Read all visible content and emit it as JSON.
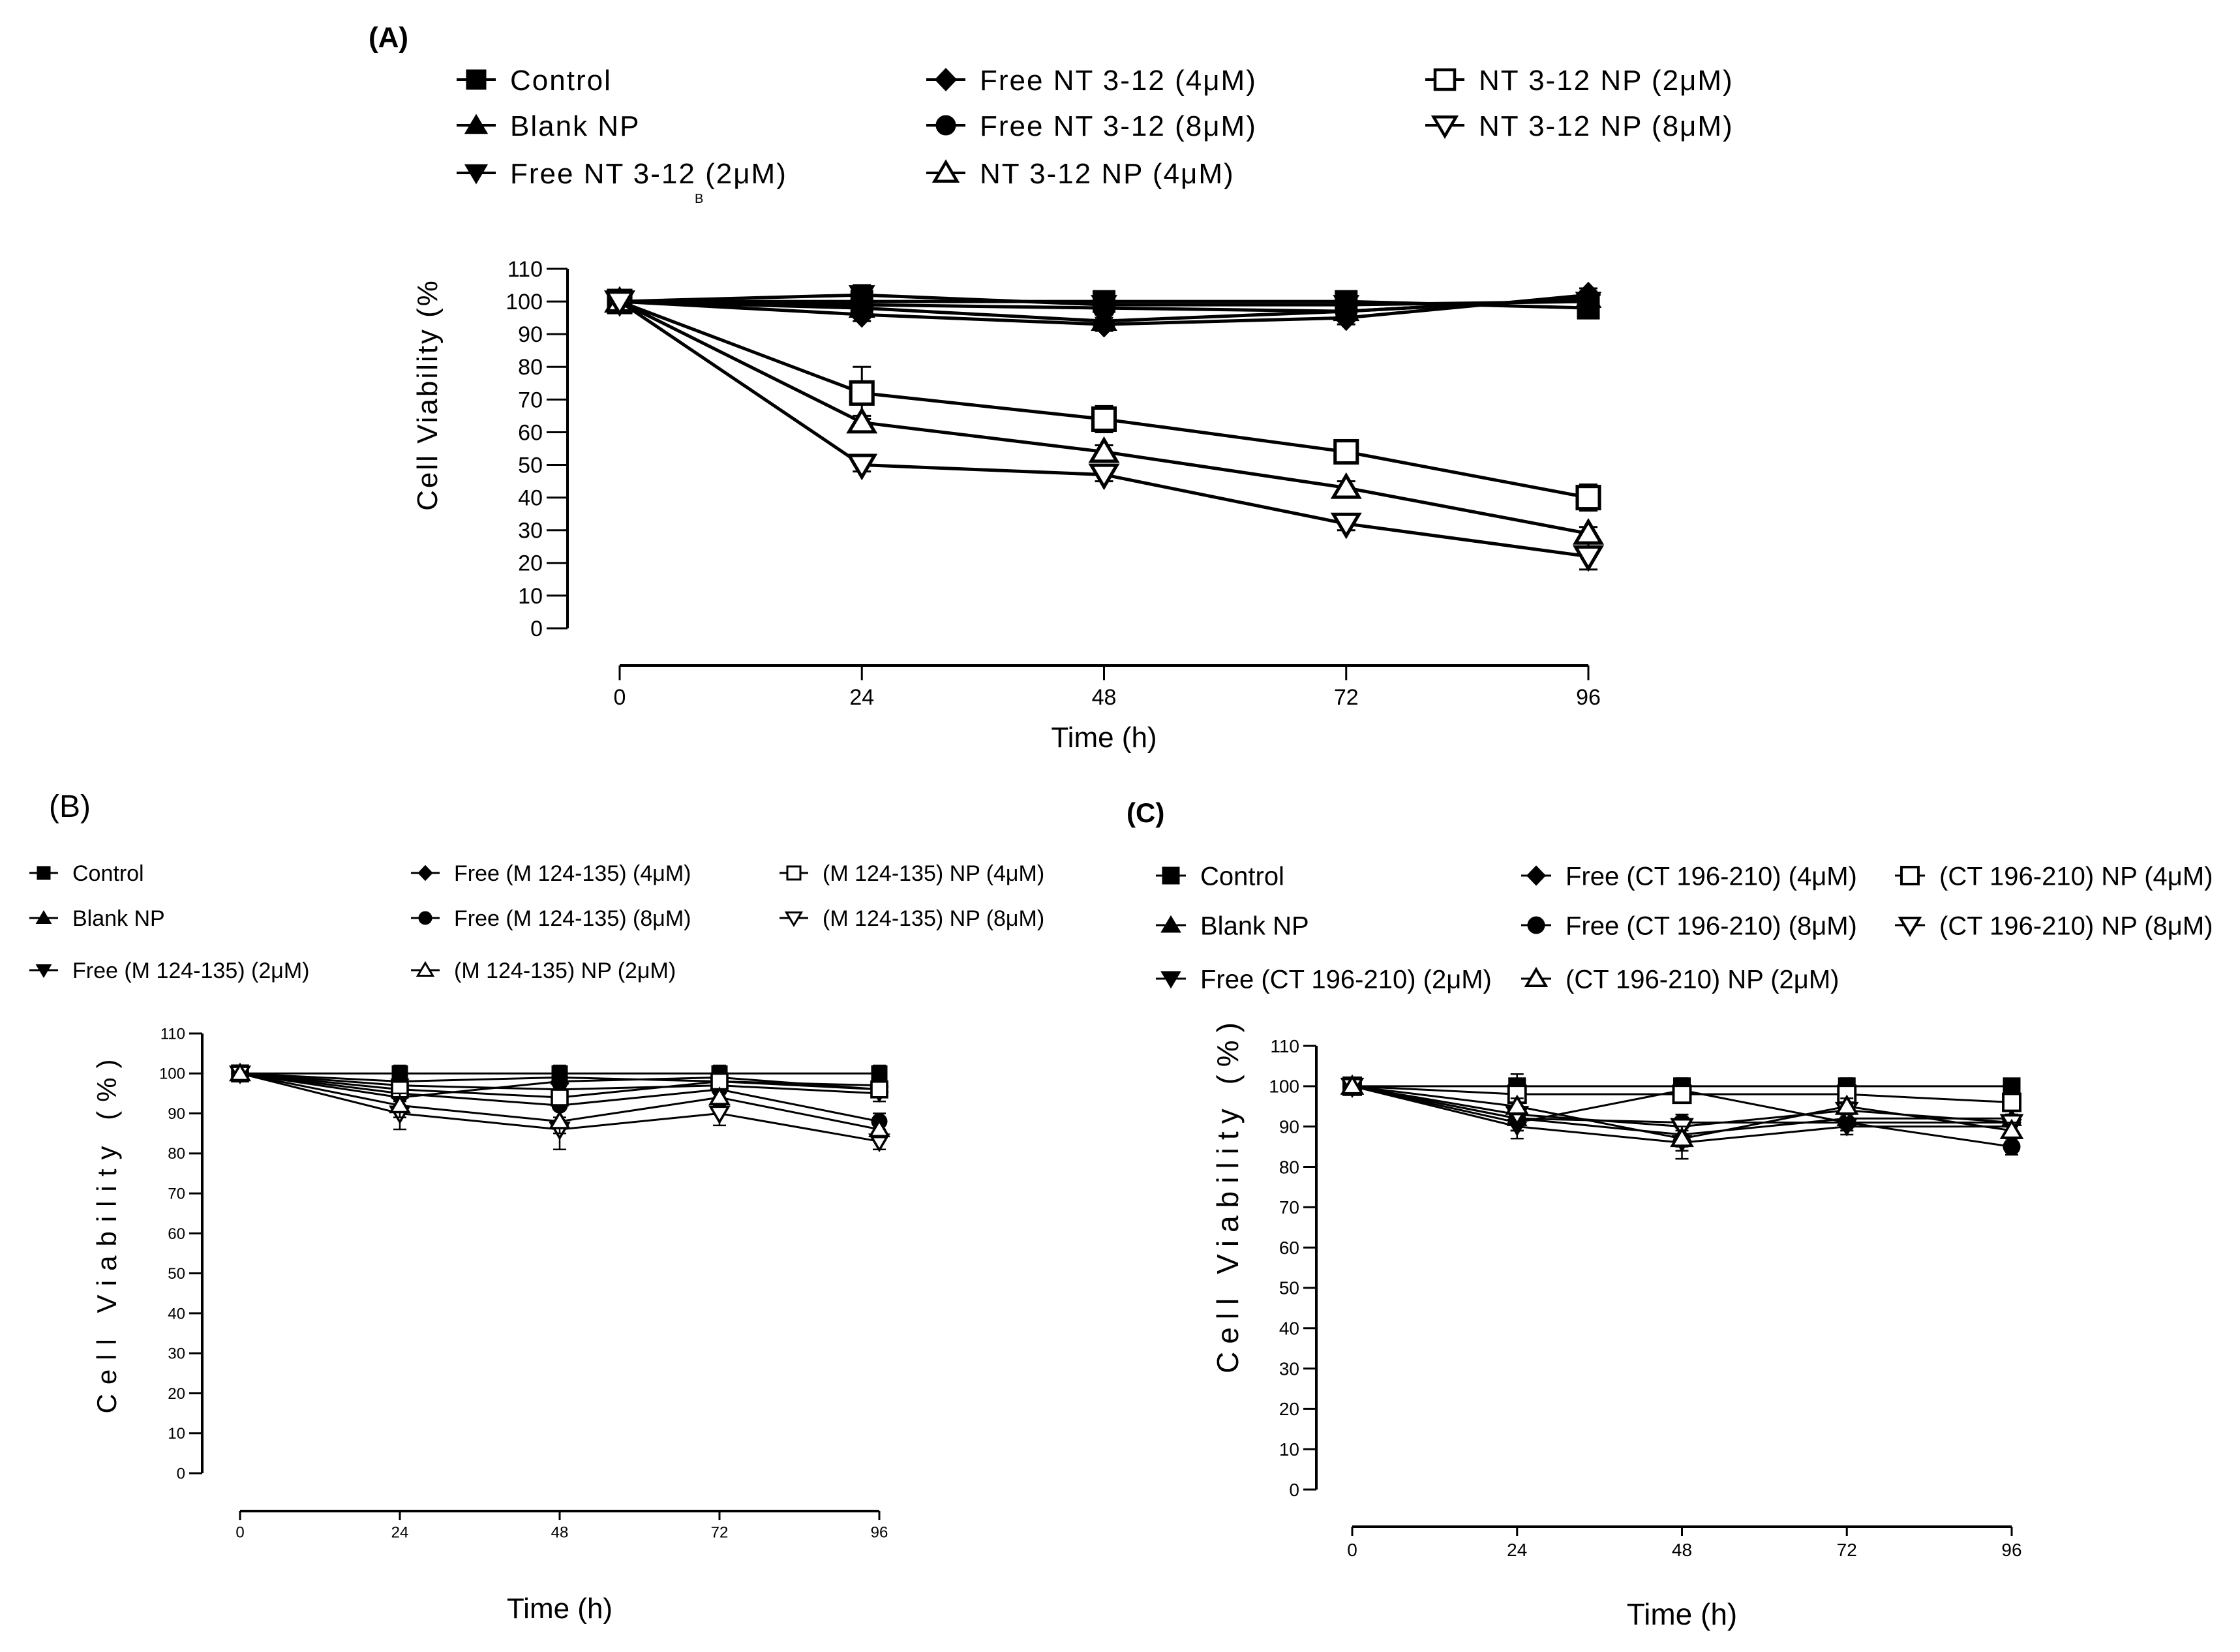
{
  "chart_data": [
    {
      "panel_label": "(A)",
      "stray_mark": "B",
      "type": "line",
      "xlabel": "Time (h)",
      "ylabel": "Cell Viability (%",
      "x": [
        0,
        24,
        48,
        72,
        96
      ],
      "xticks": [
        "0",
        "24",
        "48",
        "72",
        "96"
      ],
      "ylim": [
        0,
        110
      ],
      "yticks": [
        "0",
        "10",
        "20",
        "30",
        "40",
        "50",
        "60",
        "70",
        "80",
        "90",
        "100",
        "110"
      ],
      "legend_rows": [
        [
          "Control",
          "Free NT 3-12 (4μM)",
          "NT 3-12 NP (2μM)"
        ],
        [
          "Blank NP",
          "Free NT 3-12 (8μM)",
          "NT 3-12 NP (8μM)"
        ],
        [
          "Free NT 3-12 (2μM)",
          "NT 3-12 NP (4μM)"
        ]
      ],
      "series": [
        {
          "name": "Control",
          "marker": "square-filled",
          "values": [
            100,
            100,
            100,
            100,
            98
          ],
          "errors": [
            0,
            2,
            2,
            2,
            2
          ]
        },
        {
          "name": "Blank NP",
          "marker": "triangle-up-filled",
          "values": [
            100,
            98,
            94,
            97,
            101
          ],
          "errors": [
            0,
            2,
            2,
            2,
            2
          ]
        },
        {
          "name": "Free NT 3-12 (2μM)",
          "marker": "triangle-down-filled",
          "values": [
            100,
            102,
            99,
            99,
            100
          ],
          "errors": [
            0,
            3,
            2,
            2,
            2
          ]
        },
        {
          "name": "Free NT 3-12 (4μM)",
          "marker": "diamond-filled",
          "values": [
            100,
            96,
            93,
            95,
            102
          ],
          "errors": [
            0,
            2,
            2,
            2,
            2
          ]
        },
        {
          "name": "Free NT 3-12 (8μM)",
          "marker": "circle-filled",
          "values": [
            100,
            99,
            98,
            97,
            101
          ],
          "errors": [
            0,
            2,
            2,
            2,
            2
          ]
        },
        {
          "name": "NT 3-12 NP (2μM)",
          "marker": "square-open",
          "values": [
            100,
            72,
            64,
            54,
            40
          ],
          "errors": [
            0,
            8,
            4,
            2,
            4
          ]
        },
        {
          "name": "NT 3-12 NP (4μM)",
          "marker": "triangle-up-open",
          "values": [
            100,
            63,
            54,
            43,
            29
          ],
          "errors": [
            0,
            2,
            2,
            2,
            2
          ]
        },
        {
          "name": "NT 3-12 NP (8μM)",
          "marker": "triangle-down-open",
          "values": [
            100,
            50,
            47,
            32,
            22
          ],
          "errors": [
            0,
            2,
            2,
            2,
            4
          ]
        }
      ]
    },
    {
      "panel_label": "(B)",
      "type": "line",
      "xlabel": "Time (h)",
      "ylabel": "Cell Viability (%)",
      "x": [
        0,
        24,
        48,
        72,
        96
      ],
      "xticks": [
        "0",
        "24",
        "48",
        "72",
        "96"
      ],
      "ylim": [
        0,
        110
      ],
      "yticks": [
        "0",
        "10",
        "20",
        "30",
        "40",
        "50",
        "60",
        "70",
        "80",
        "90",
        "100",
        "110"
      ],
      "legend_rows": [
        [
          "Control",
          "Free (M 124-135) (4μM)",
          "(M 124-135) NP (4μM)"
        ],
        [
          "Blank NP",
          "Free (M 124-135) (8μM)",
          "(M 124-135) NP (8μM)"
        ],
        [
          "Free (M 124-135) (2μM)",
          "(M 124-135) NP (2μM)"
        ]
      ],
      "series": [
        {
          "name": "Control",
          "marker": "square-filled",
          "values": [
            100,
            100,
            100,
            100,
            100
          ],
          "errors": [
            0,
            2,
            2,
            2,
            2
          ]
        },
        {
          "name": "Blank NP",
          "marker": "triangle-up-filled",
          "values": [
            100,
            98,
            99,
            98,
            97
          ],
          "errors": [
            0,
            2,
            2,
            2,
            2
          ]
        },
        {
          "name": "Free (M 124-135) (2μM)",
          "marker": "triangle-down-filled",
          "values": [
            100,
            97,
            96,
            97,
            95
          ],
          "errors": [
            0,
            3,
            2,
            2,
            2
          ]
        },
        {
          "name": "Free (M 124-135) (4μM)",
          "marker": "diamond-filled",
          "values": [
            100,
            94,
            98,
            99,
            96
          ],
          "errors": [
            0,
            3,
            2,
            2,
            2
          ]
        },
        {
          "name": "Free (M 124-135) (8μM)",
          "marker": "circle-filled",
          "values": [
            100,
            95,
            92,
            96,
            88
          ],
          "errors": [
            0,
            3,
            3,
            2,
            2
          ]
        },
        {
          "name": "(M 124-135) NP (4μM)",
          "marker": "square-open",
          "values": [
            100,
            96,
            94,
            98,
            96
          ],
          "errors": [
            0,
            3,
            2,
            2,
            2
          ]
        },
        {
          "name": "(M 124-135) NP (8μM)",
          "marker": "triangle-down-open",
          "values": [
            100,
            90,
            86,
            90,
            83
          ],
          "errors": [
            0,
            4,
            5,
            3,
            2
          ]
        },
        {
          "name": "(M 124-135) NP (2μM)",
          "marker": "triangle-up-open",
          "values": [
            100,
            92,
            88,
            94,
            86
          ],
          "errors": [
            0,
            3,
            3,
            2,
            2
          ]
        }
      ]
    },
    {
      "panel_label": "(C)",
      "type": "line",
      "xlabel": "Time (h)",
      "ylabel": "Cell Viability (%)",
      "x": [
        0,
        24,
        48,
        72,
        96
      ],
      "xticks": [
        "0",
        "24",
        "48",
        "72",
        "96"
      ],
      "ylim": [
        0,
        110
      ],
      "yticks": [
        "0",
        "10",
        "20",
        "30",
        "40",
        "50",
        "60",
        "70",
        "80",
        "90",
        "100",
        "110"
      ],
      "legend_rows": [
        [
          "Control",
          "Free (CT 196-210) (4μM)",
          "(CT 196-210) NP (4μM)"
        ],
        [
          "Blank NP",
          "Free (CT 196-210) (8μM)",
          "(CT 196-210) NP (8μM)"
        ],
        [
          "Free (CT 196-210) (2μM)",
          "(CT 196-210) NP (2μM)"
        ]
      ],
      "series": [
        {
          "name": "Control",
          "marker": "square-filled",
          "values": [
            100,
            100,
            100,
            100,
            100
          ],
          "errors": [
            0,
            3,
            2,
            2,
            1
          ]
        },
        {
          "name": "Blank NP",
          "marker": "triangle-up-filled",
          "values": [
            100,
            92,
            88,
            92,
            92
          ],
          "errors": [
            0,
            3,
            3,
            2,
            2
          ]
        },
        {
          "name": "Free (CT 196-210) (2μM)",
          "marker": "triangle-down-filled",
          "values": [
            100,
            90,
            86,
            90,
            90
          ],
          "errors": [
            0,
            3,
            4,
            2,
            2
          ]
        },
        {
          "name": "Free (CT 196-210) (4μM)",
          "marker": "diamond-filled",
          "values": [
            100,
            91,
            99,
            91,
            91
          ],
          "errors": [
            0,
            2,
            2,
            2,
            2
          ]
        },
        {
          "name": "Free (CT 196-210) (8μM)",
          "marker": "circle-filled",
          "values": [
            100,
            92,
            91,
            91,
            85
          ],
          "errors": [
            0,
            3,
            2,
            2,
            2
          ]
        },
        {
          "name": "(CT 196-210) NP (4μM)",
          "marker": "square-open",
          "values": [
            100,
            98,
            98,
            98,
            96
          ],
          "errors": [
            0,
            2,
            2,
            2,
            2
          ]
        },
        {
          "name": "(CT 196-210) NP (8μM)",
          "marker": "triangle-down-open",
          "values": [
            100,
            93,
            90,
            94,
            91
          ],
          "errors": [
            0,
            2,
            2,
            2,
            2
          ]
        },
        {
          "name": "(CT 196-210) NP (2μM)",
          "marker": "triangle-up-open",
          "values": [
            100,
            95,
            87,
            95,
            89
          ],
          "errors": [
            0,
            2,
            3,
            2,
            2
          ]
        }
      ]
    }
  ]
}
